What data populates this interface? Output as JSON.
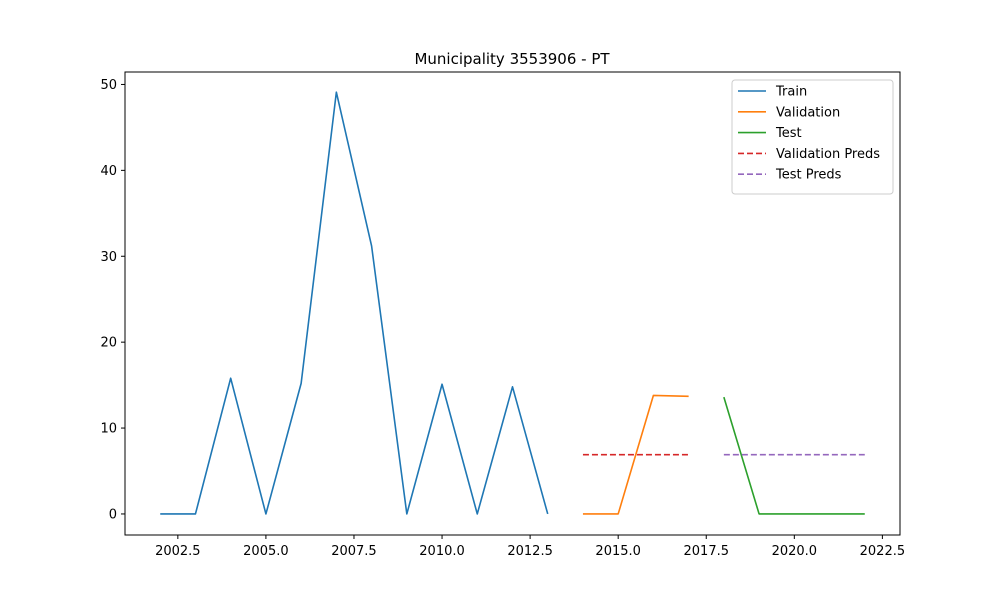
{
  "chart_data": {
    "type": "line",
    "title": "Municipality 3553906 - PT",
    "xlabel": "",
    "ylabel": "",
    "xlim": [
      2001.0,
      2023.0
    ],
    "ylim": [
      -2.45,
      51.45
    ],
    "xticks": [
      2002.5,
      2005.0,
      2007.5,
      2010.0,
      2012.5,
      2015.0,
      2017.5,
      2020.0,
      2022.5
    ],
    "xtick_labels": [
      "2002.5",
      "2005.0",
      "2007.5",
      "2010.0",
      "2012.5",
      "2015.0",
      "2017.5",
      "2020.0",
      "2022.5"
    ],
    "yticks": [
      0,
      10,
      20,
      30,
      40,
      50
    ],
    "ytick_labels": [
      "0",
      "10",
      "20",
      "30",
      "40",
      "50"
    ],
    "grid": false,
    "legend_position": "top-right",
    "series": [
      {
        "name": "Train",
        "color": "#1f77b4",
        "dash": "solid",
        "x": [
          2002,
          2003,
          2004,
          2005,
          2006,
          2007,
          2008,
          2009,
          2010,
          2011,
          2012,
          2013
        ],
        "y": [
          0,
          0,
          15.8,
          0,
          15.2,
          49.1,
          31.2,
          0,
          15.1,
          0,
          14.8,
          0
        ]
      },
      {
        "name": "Validation",
        "color": "#ff7f0e",
        "dash": "solid",
        "x": [
          2014,
          2015,
          2016,
          2017
        ],
        "y": [
          0,
          0,
          13.8,
          13.7
        ]
      },
      {
        "name": "Test",
        "color": "#2ca02c",
        "dash": "solid",
        "x": [
          2018,
          2019,
          2020,
          2021,
          2022
        ],
        "y": [
          13.6,
          0,
          0,
          0,
          0
        ]
      },
      {
        "name": "Validation Preds",
        "color": "#d62728",
        "dash": "dashed",
        "x": [
          2014,
          2015,
          2016,
          2017
        ],
        "y": [
          6.9,
          6.9,
          6.9,
          6.9
        ]
      },
      {
        "name": "Test Preds",
        "color": "#9467bd",
        "dash": "dashed",
        "x": [
          2018,
          2019,
          2020,
          2021,
          2022
        ],
        "y": [
          6.9,
          6.9,
          6.9,
          6.9,
          6.9
        ]
      }
    ]
  }
}
